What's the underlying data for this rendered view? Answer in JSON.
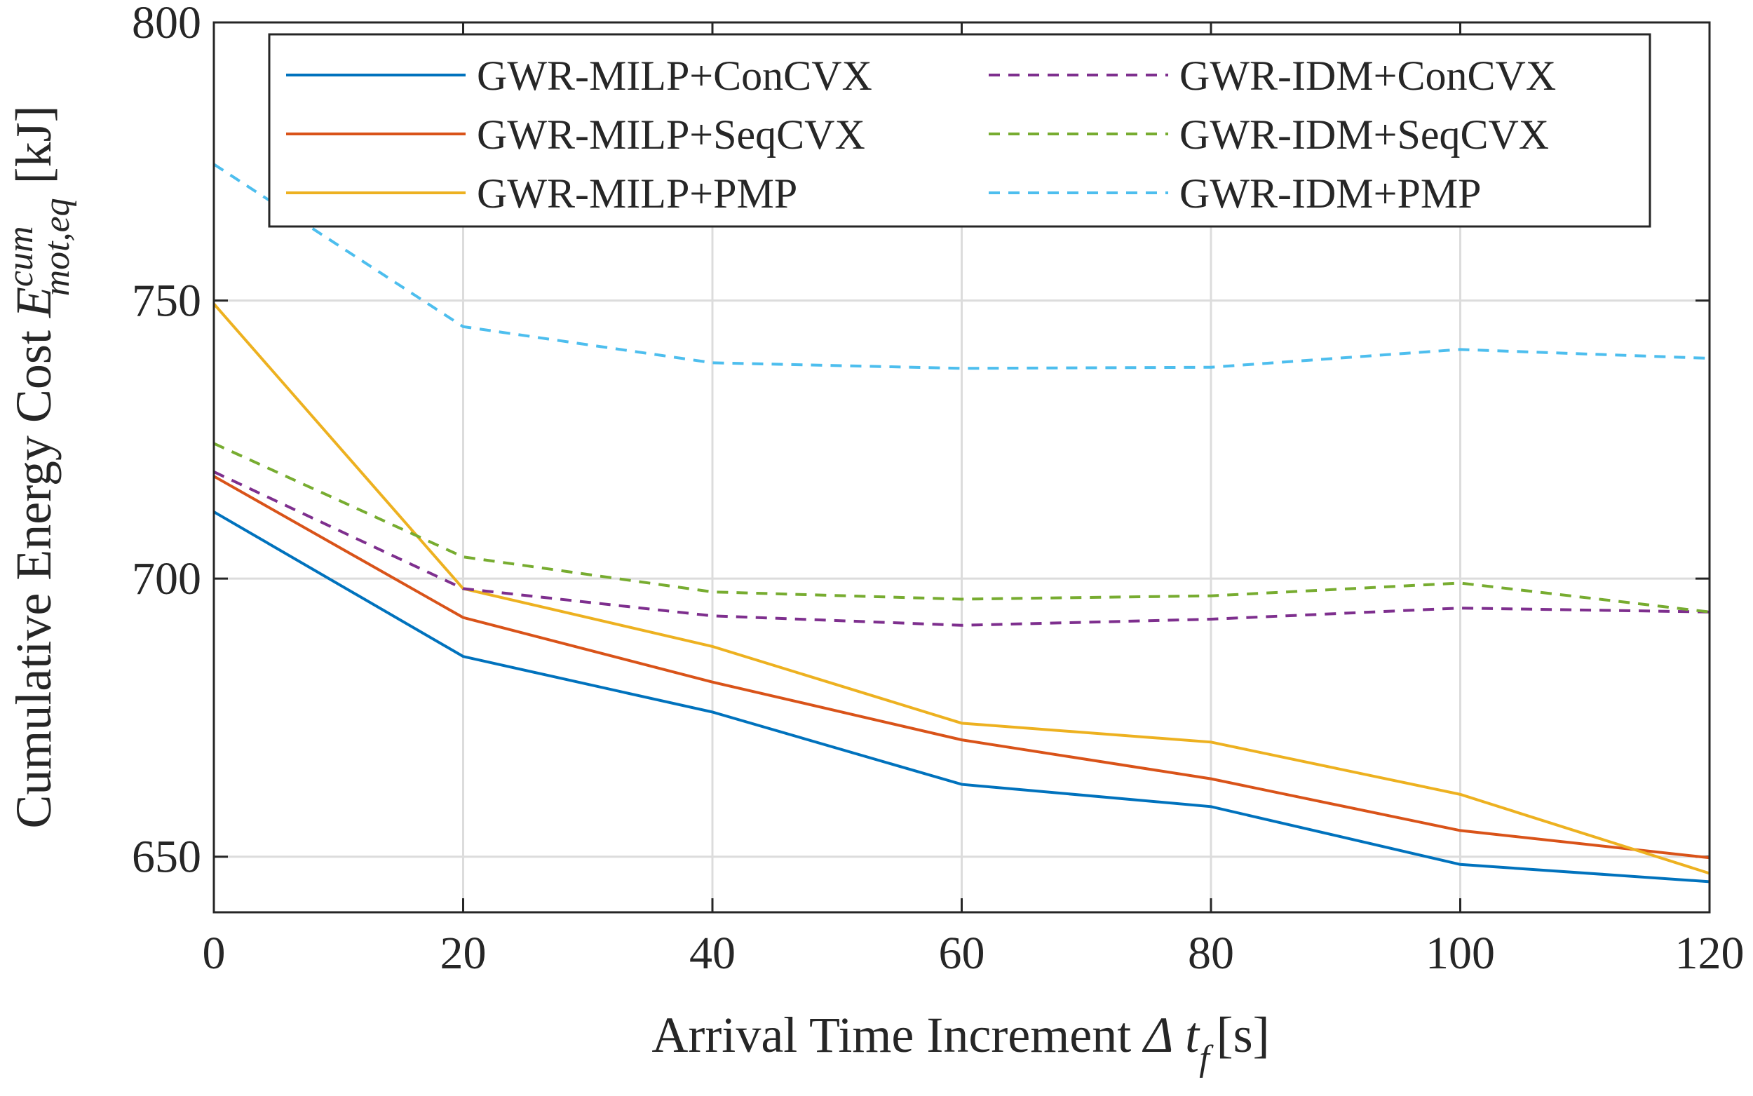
{
  "chart_data": {
    "type": "line",
    "y_label": {
      "text": "Cumulative Energy Cost",
      "symbol": "E",
      "superscript": "cum",
      "subscript": "mot,eq",
      "unit": "[kJ]"
    },
    "x_label": {
      "text": "Arrival Time Increment",
      "symbol": "Δ t",
      "subscript": "f",
      "unit": "[s]"
    },
    "x": [
      0,
      20,
      40,
      60,
      80,
      100,
      120
    ],
    "xlim": [
      0,
      120
    ],
    "xticks": [
      0,
      20,
      40,
      60,
      80,
      100,
      120
    ],
    "ylim": [
      640,
      800
    ],
    "yticks": [
      650,
      700,
      750,
      800
    ],
    "grid": true,
    "legend": "top",
    "legend_columns": 2,
    "series": [
      {
        "name": "GWR-MILP+ConCVX",
        "color": "#0072BD",
        "style": "solid",
        "values": [
          712,
          686,
          676,
          663,
          659,
          648.6,
          645.5
        ]
      },
      {
        "name": "GWR-MILP+SeqCVX",
        "color": "#D95319",
        "style": "solid",
        "values": [
          718.4,
          693,
          681.4,
          671,
          664,
          654.7,
          649.8
        ]
      },
      {
        "name": "GWR-MILP+PMP",
        "color": "#EDB120",
        "style": "solid",
        "values": [
          749.4,
          698.2,
          687.8,
          674,
          670.6,
          661.2,
          647
        ]
      },
      {
        "name": "GWR-IDM+ConCVX",
        "color": "#7E2F8E",
        "style": "dashed",
        "values": [
          719.2,
          698.2,
          693.3,
          691.6,
          692.7,
          694.7,
          694
        ]
      },
      {
        "name": "GWR-IDM+SeqCVX",
        "color": "#77AC30",
        "style": "dashed",
        "values": [
          724.3,
          703.9,
          697.6,
          696.3,
          696.9,
          699.2,
          694
        ]
      },
      {
        "name": "GWR-IDM+PMP",
        "color": "#4DBEEE",
        "style": "dashed",
        "values": [
          774.5,
          745.3,
          738.8,
          737.8,
          738,
          741.2,
          739.6
        ]
      }
    ]
  }
}
